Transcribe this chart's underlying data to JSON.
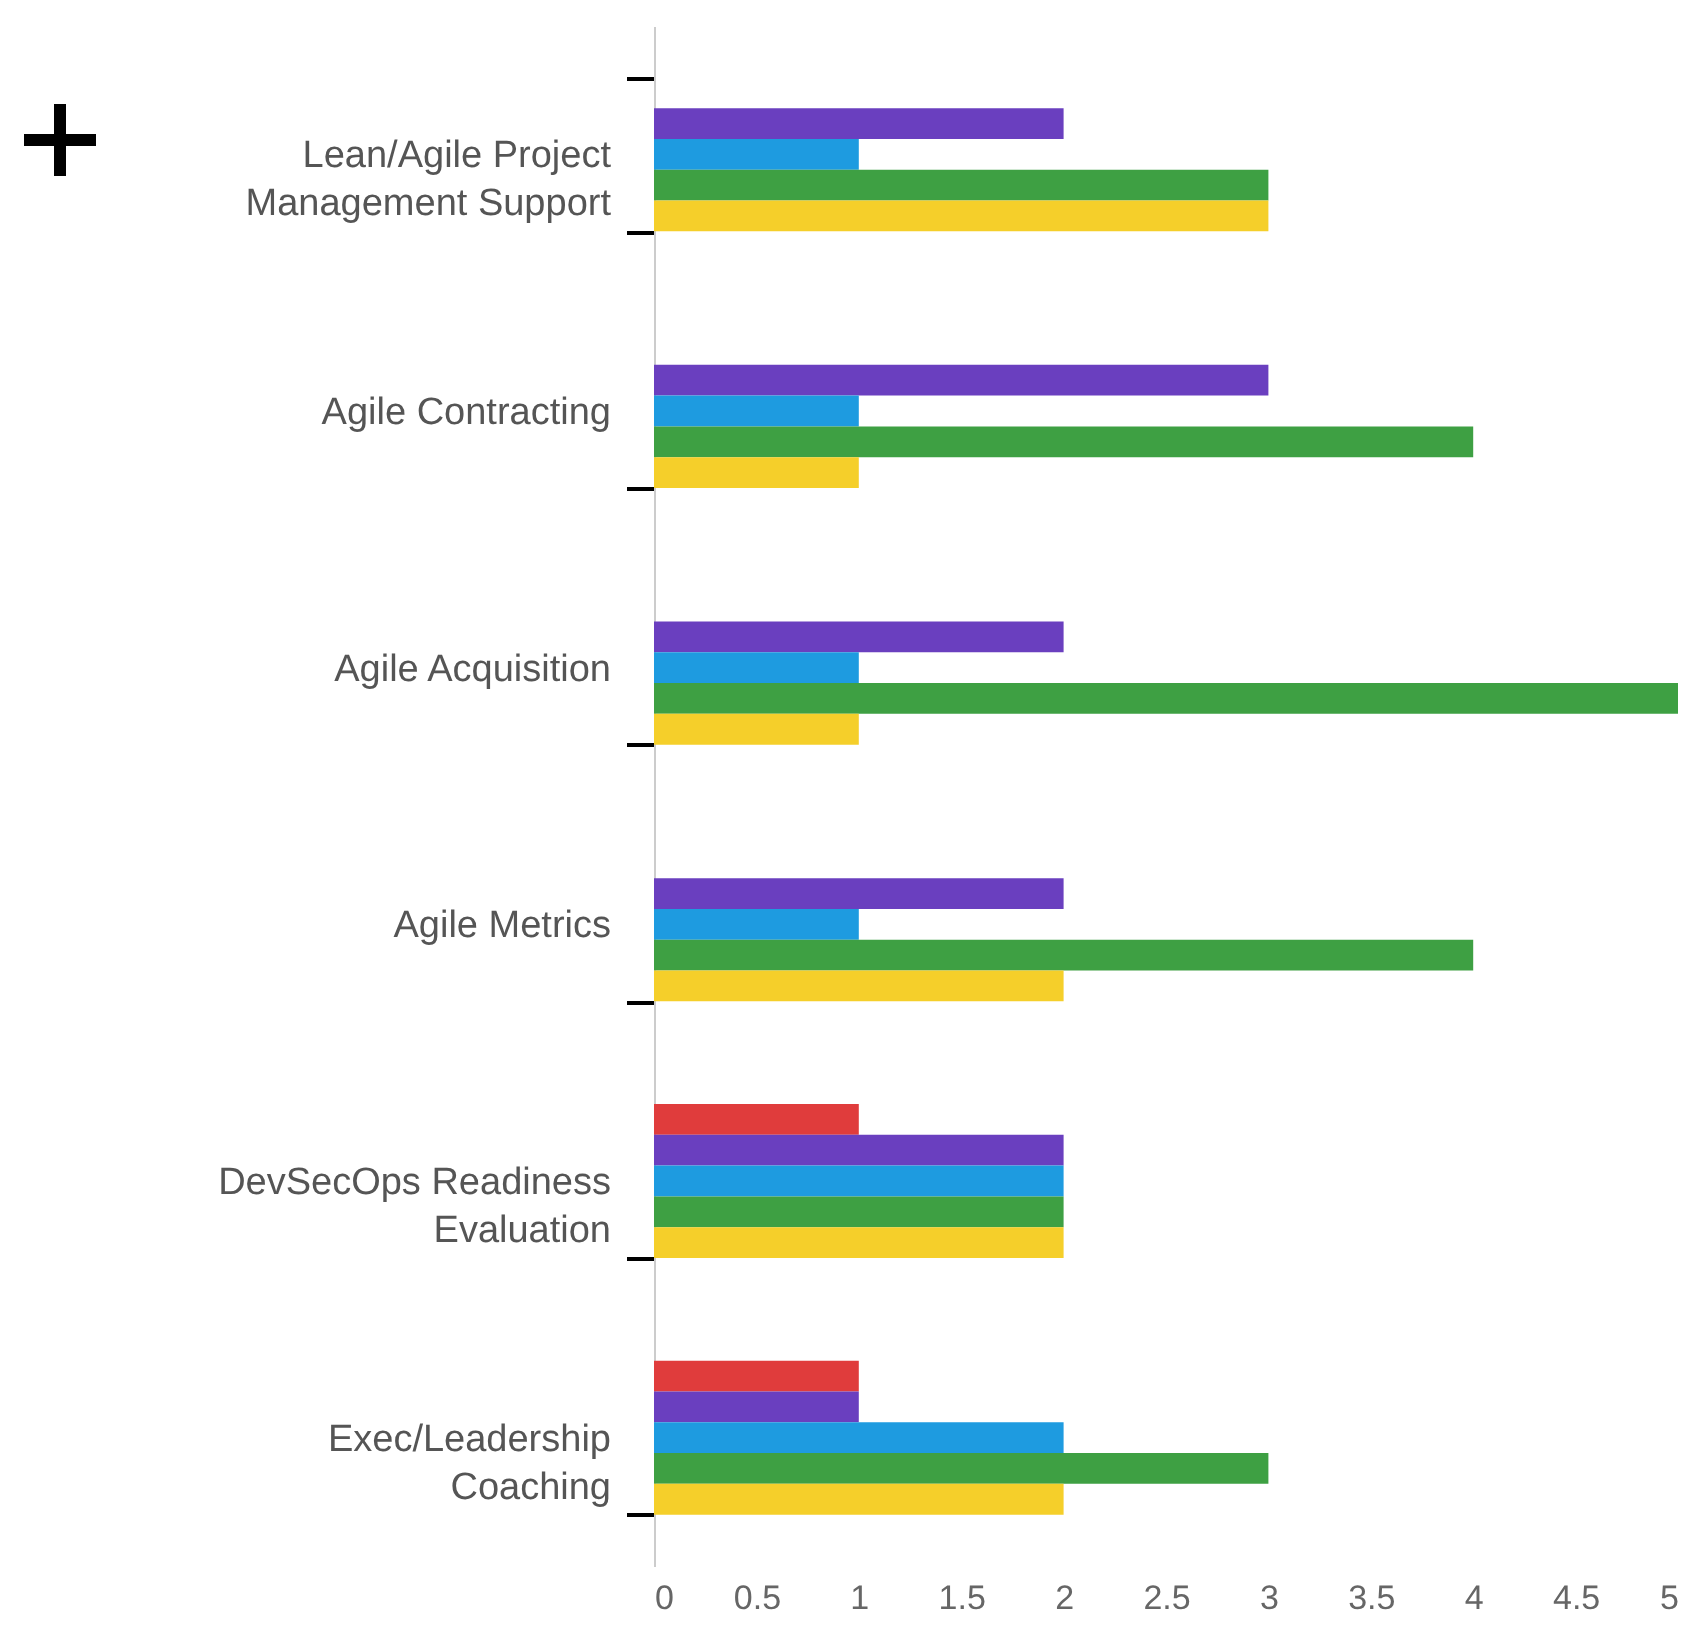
{
  "chart_data": {
    "type": "bar",
    "orientation": "horizontal",
    "categories": [
      "Lean/Agile Project Management Support",
      "Agile Contracting",
      "Agile Acquisition",
      "Agile Metrics",
      "DevSecOps Readiness Evaluation",
      "Exec/Leadership Coaching"
    ],
    "series": [
      {
        "color": "#e03c3c",
        "values": [
          null,
          null,
          null,
          null,
          1,
          1
        ]
      },
      {
        "color": "#6a3fbf",
        "values": [
          2,
          3,
          2,
          2,
          2,
          1
        ]
      },
      {
        "color": "#1e9be0",
        "values": [
          1,
          1,
          1,
          1,
          2,
          2
        ]
      },
      {
        "color": "#3ea043",
        "values": [
          3,
          4,
          5,
          4,
          2,
          3
        ]
      },
      {
        "color": "#f5cf2a",
        "values": [
          3,
          1,
          1,
          2,
          2,
          2
        ]
      }
    ],
    "xlim": [
      0,
      5
    ],
    "xticks": [
      0,
      0.5,
      1,
      1.5,
      2,
      2.5,
      3,
      3.5,
      4,
      4.5,
      5
    ]
  }
}
